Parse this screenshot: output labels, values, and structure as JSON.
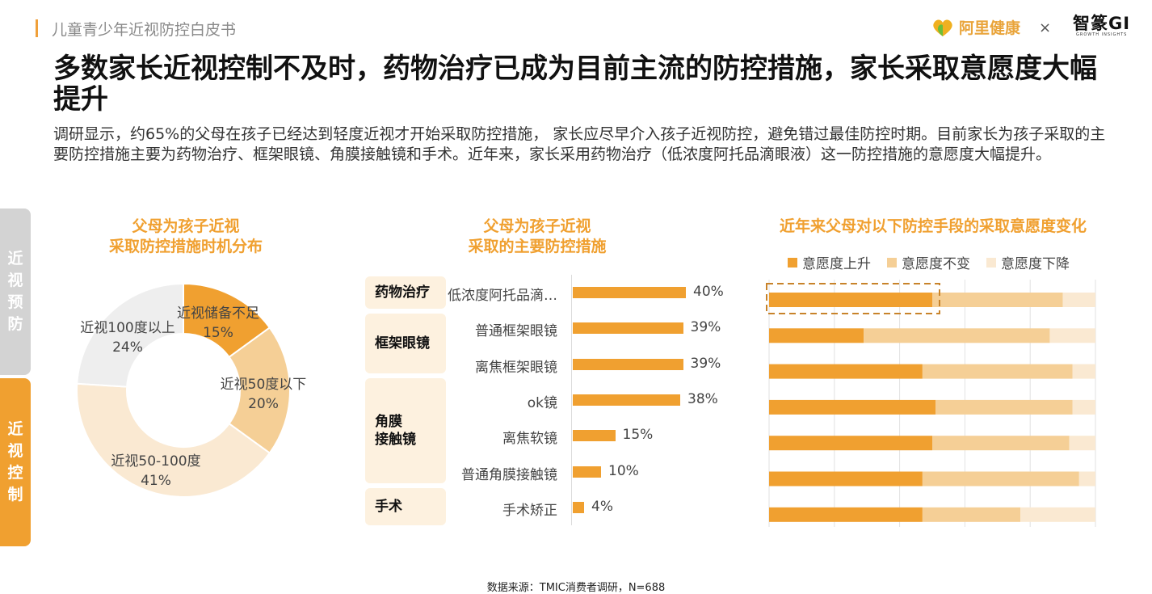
{
  "header": {
    "title": "儿童青少年近视防控白皮书",
    "logo_ali": "阿里健康",
    "logo_x": "×",
    "logo_gi": "智篆GI",
    "logo_gi_sub": "GROWTH INSIGHTS"
  },
  "main_title": "多数家长近视控制不及时，药物治疗已成为目前主流的防控措施，家长采取意愿度大幅提升",
  "description": "调研显示，约65%的父母在孩子已经达到轻度近视才开始采取防控措施， 家长应尽早介入孩子近视防控，避免错过最佳防控时期。目前家长为孩子采取的主要防控措施主要为药物治疗、框架眼镜、角膜接触镜和手术。近年来，家长采用药物治疗（低浓度阿托品滴眼液）这一防控措施的意愿度大幅提升。",
  "side_tabs": [
    {
      "label": "近视预防"
    },
    {
      "label": "近视控制"
    }
  ],
  "colors": {
    "accent": "#f0a030",
    "light": "#f5cf96",
    "pale": "#fae9d2",
    "grey": "#eeeeee"
  },
  "chart_data": [
    {
      "type": "pie",
      "title_line1": "父母为孩子近视",
      "title_line2": "采取防控措施时机分布",
      "slices": [
        {
          "label": "近视储备不足",
          "value": 15,
          "display": "15%",
          "color": "#f0a030"
        },
        {
          "label": "近视50度以下",
          "value": 20,
          "display": "20%",
          "color": "#f5cf96"
        },
        {
          "label": "近视50-100度",
          "value": 41,
          "display": "41%",
          "color": "#fae9d2"
        },
        {
          "label": "近视100度以上",
          "value": 24,
          "display": "24%",
          "color": "#eeeeee"
        }
      ]
    },
    {
      "type": "bar",
      "title_line1": "父母为孩子近视",
      "title_line2": "采取的主要防控措施",
      "groups": [
        {
          "label": "药物治疗",
          "items": [
            {
              "label": "低浓度阿托品滴…",
              "value": 40,
              "display": "40%"
            }
          ]
        },
        {
          "label": "框架眼镜",
          "items": [
            {
              "label": "普通框架眼镜",
              "value": 39,
              "display": "39%"
            },
            {
              "label": "离焦框架眼镜",
              "value": 39,
              "display": "39%"
            }
          ]
        },
        {
          "label": "角膜接触镜",
          "label_line1": "角膜",
          "label_line2": "接触镜",
          "items": [
            {
              "label": "ok镜",
              "value": 38,
              "display": "38%"
            },
            {
              "label": "离焦软镜",
              "value": 15,
              "display": "15%"
            },
            {
              "label": "普通角膜接触镜",
              "value": 10,
              "display": "10%"
            }
          ]
        },
        {
          "label": "手术",
          "items": [
            {
              "label": "手术矫正",
              "value": 4,
              "display": "4%"
            }
          ]
        }
      ]
    },
    {
      "type": "bar",
      "stacked": true,
      "orientation": "horizontal",
      "title": "近年来父母对以下防控手段的采取意愿度变化",
      "series": [
        {
          "name": "意愿度上升",
          "color": "#f0a030",
          "values": [
            50,
            29,
            47,
            51,
            50,
            47,
            47
          ]
        },
        {
          "name": "意愿度不变",
          "color": "#f5cf96",
          "values": [
            40,
            57,
            46,
            42,
            42,
            48,
            30
          ]
        },
        {
          "name": "意愿度下降",
          "color": "#fae9d2",
          "values": [
            10,
            14,
            7,
            7,
            8,
            5,
            23
          ]
        }
      ],
      "highlight_row": 0,
      "xlim": [
        0,
        100
      ],
      "legend": "top"
    }
  ],
  "source": "数据来源：TMIC消费者调研，N=688"
}
